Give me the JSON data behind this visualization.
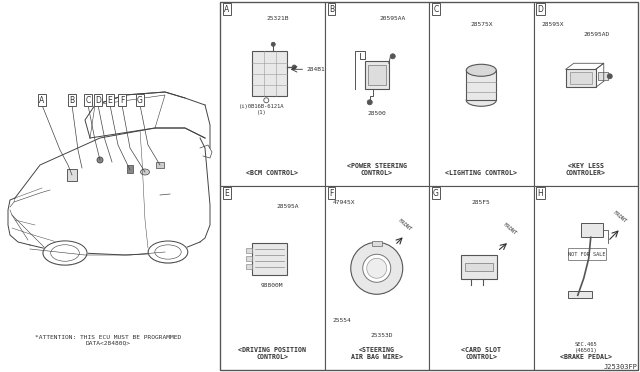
{
  "bg_color": "#ffffff",
  "border_color": "#555555",
  "text_color": "#333333",
  "sections": [
    {
      "id": "A",
      "row": 0,
      "col": 0,
      "label": "<BCM CONTROL>",
      "part1": "25321B",
      "part2": "284B1",
      "part3": "(i)0B16B-6121A\n(1)"
    },
    {
      "id": "B",
      "row": 0,
      "col": 1,
      "label": "<POWER STEERING\nCONTROL>",
      "part1": "20595AA",
      "part2": "28500",
      "part3": ""
    },
    {
      "id": "C",
      "row": 0,
      "col": 2,
      "label": "<LIGHTING CONTROL>",
      "part1": "28575X",
      "part2": "",
      "part3": ""
    },
    {
      "id": "D",
      "row": 0,
      "col": 3,
      "label": "<KEY LESS\nCONTROLER>",
      "part1": "28595X",
      "part2": "20595AD",
      "part3": ""
    },
    {
      "id": "E",
      "row": 1,
      "col": 0,
      "label": "<DRIVING POSITION\nCONTROL>",
      "part1": "28595A",
      "part2": "98800M",
      "part3": ""
    },
    {
      "id": "F",
      "row": 1,
      "col": 1,
      "label": "<STEERING\nAIR BAG WIRE>",
      "part1": "47945X",
      "part2": "25554",
      "part3": "25353D"
    },
    {
      "id": "G",
      "row": 1,
      "col": 2,
      "label": "<CARD SLOT\nCONTROL>",
      "part1": "285F5",
      "part2": "",
      "part3": ""
    },
    {
      "id": "H",
      "row": 1,
      "col": 3,
      "label": "<BRAKE PEDAL>",
      "part1": "NOT FOR SALE",
      "part2": "SEC.465\n(46501)",
      "part3": ""
    }
  ],
  "attention_text": "*ATTENTION: THIS ECU MUST BE PROGRAMMED\nDATA<28480Q>",
  "diagram_ref": "J25303FP"
}
